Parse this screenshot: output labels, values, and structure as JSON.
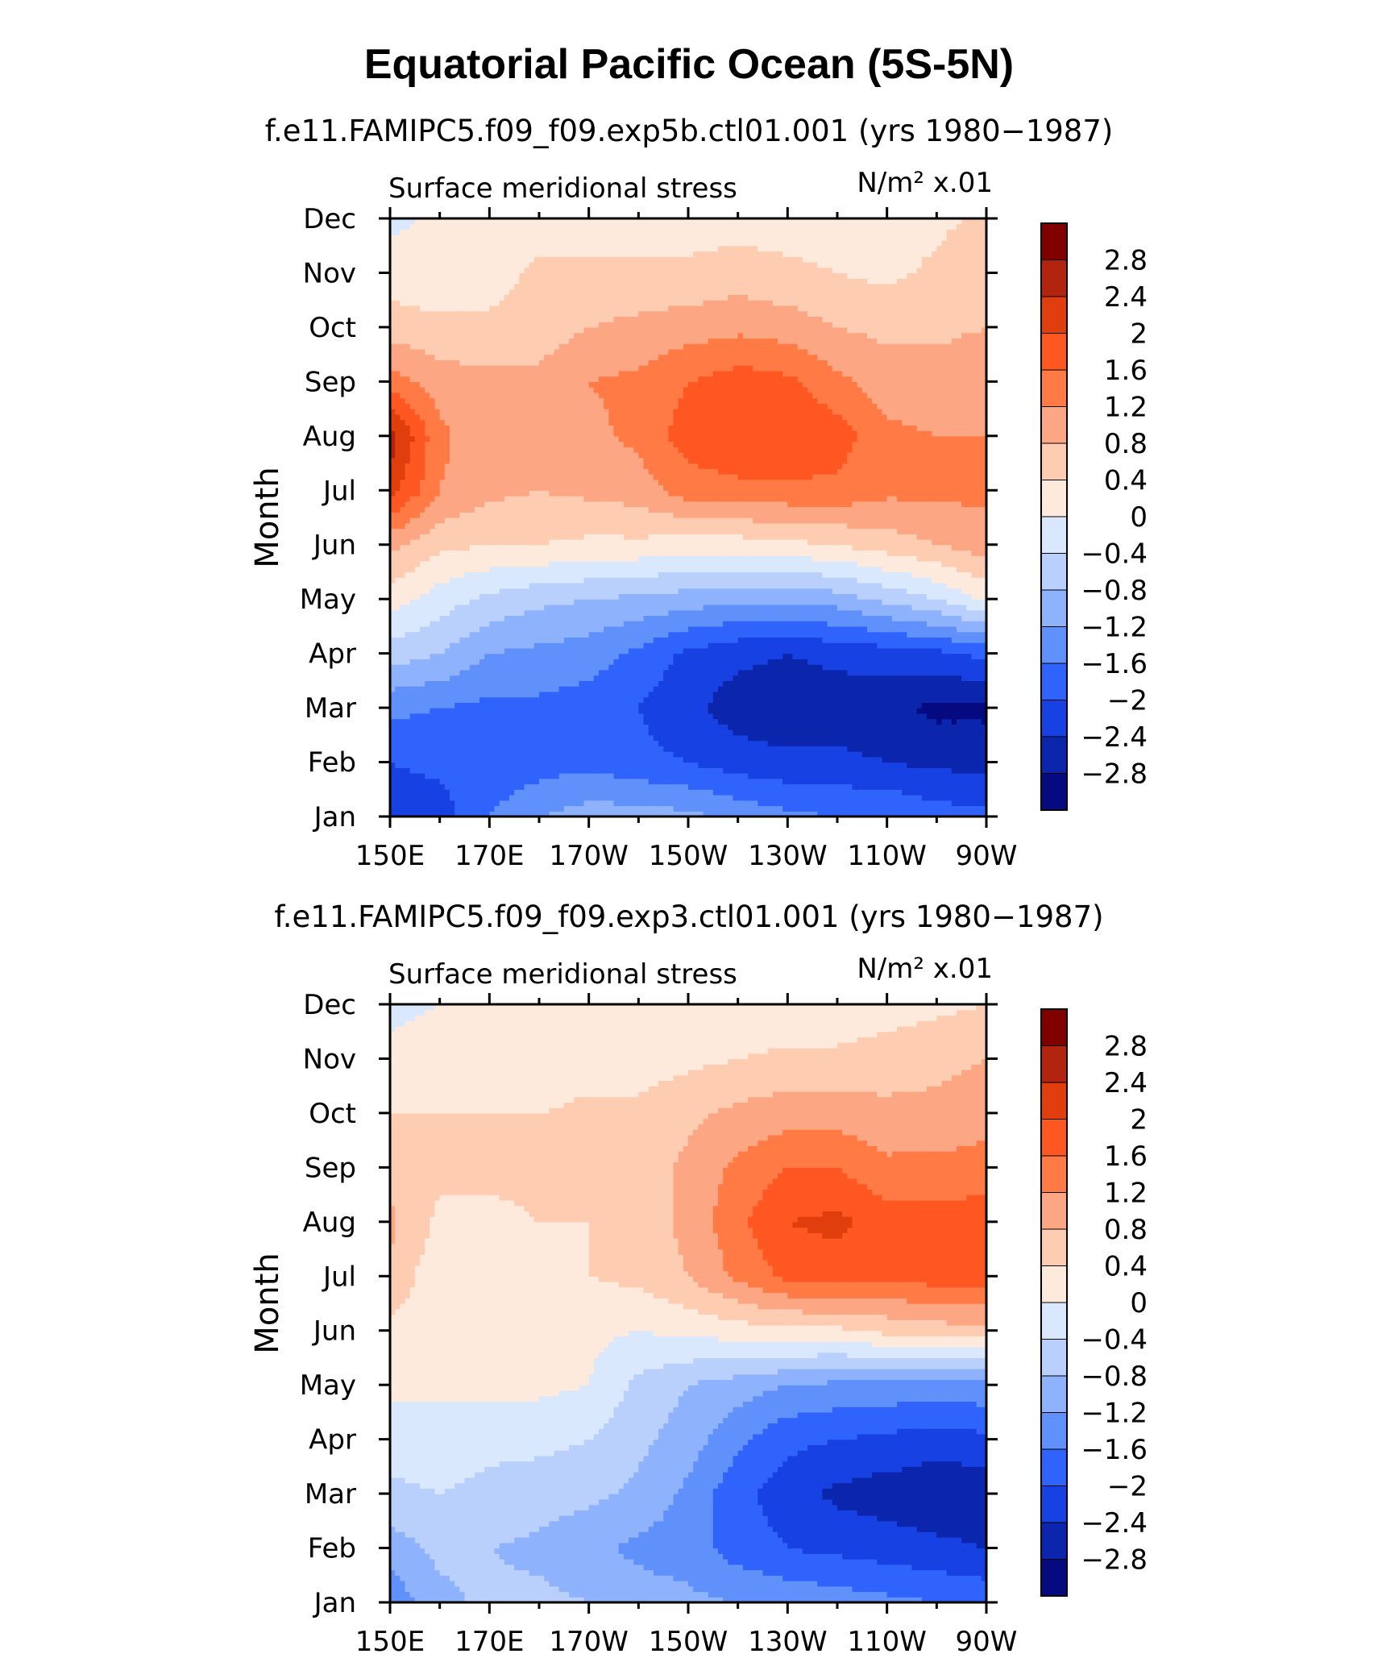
{
  "title": "Equatorial Pacific Ocean (5S-5N)",
  "colorbar": {
    "levels": [
      "2.8",
      "2.4",
      "2",
      "1.6",
      "1.2",
      "0.8",
      "0.4",
      "0",
      "−0.4",
      "−0.8",
      "−1.2",
      "−1.6",
      "−2",
      "−2.4",
      "−2.8"
    ],
    "colors": [
      "#800000",
      "#b3240f",
      "#e03e0c",
      "#ff5722",
      "#ff7a45",
      "#fca683",
      "#fdccb1",
      "#feeadc",
      "#d9e8fc",
      "#b9d0fc",
      "#8fb2fc",
      "#6091fb",
      "#2f63fb",
      "#1741e2",
      "#0b26ac",
      "#050a80"
    ]
  },
  "chart_data": [
    {
      "type": "heatmap",
      "subtitle": "f.e11.FAMIPC5.f09_f09.exp5b.ctl01.001 (yrs 1980−1987)",
      "variable_label": "Surface meridional stress",
      "units_label": "N/m² x.01",
      "ylabel": "Month",
      "x_ticks": [
        "150E",
        "170E",
        "170W",
        "150W",
        "130W",
        "110W",
        "90W"
      ],
      "x_tick_values": [
        150,
        170,
        190,
        210,
        230,
        250,
        270
      ],
      "y_ticks": [
        "Jan",
        "Feb",
        "Mar",
        "Apr",
        "May",
        "Jun",
        "Jul",
        "Aug",
        "Sep",
        "Oct",
        "Nov",
        "Dec"
      ],
      "xlim": [
        150,
        270
      ],
      "ylim": [
        1,
        12
      ],
      "x": [
        150,
        160,
        170,
        180,
        190,
        200,
        210,
        220,
        230,
        240,
        250,
        260,
        270
      ],
      "y": [
        1,
        2,
        3,
        4,
        5,
        6,
        7,
        8,
        9,
        10,
        11,
        12
      ],
      "z": [
        [
          -2.3,
          -2.2,
          -1.6,
          -1.2,
          -1.0,
          -1.0,
          -1.1,
          -1.3,
          -1.5,
          -1.6,
          -1.6,
          -1.8,
          -1.9
        ],
        [
          -2.0,
          -1.9,
          -1.9,
          -1.8,
          -1.7,
          -1.9,
          -2.0,
          -2.2,
          -2.3,
          -2.3,
          -2.4,
          -2.5,
          -2.5
        ],
        [
          -1.5,
          -1.6,
          -1.7,
          -1.7,
          -1.8,
          -2.0,
          -2.3,
          -2.6,
          -2.7,
          -2.6,
          -2.7,
          -2.9,
          -2.9
        ],
        [
          -0.6,
          -0.8,
          -1.2,
          -1.3,
          -1.4,
          -1.7,
          -2.1,
          -2.3,
          -2.4,
          -2.3,
          -2.2,
          -2.1,
          -1.9
        ],
        [
          0.2,
          -0.2,
          -0.5,
          -0.7,
          -0.8,
          -0.9,
          -1.0,
          -1.1,
          -1.1,
          -1.0,
          -0.7,
          -0.4,
          0.1
        ],
        [
          0.9,
          0.5,
          0.4,
          0.4,
          0.3,
          0.3,
          0.2,
          0.2,
          0.3,
          0.4,
          0.6,
          0.8,
          1.0
        ],
        [
          2.2,
          1.2,
          0.9,
          0.8,
          0.9,
          1.0,
          1.4,
          1.5,
          1.5,
          1.5,
          1.3,
          1.3,
          1.3
        ],
        [
          2.6,
          1.3,
          0.9,
          0.9,
          1.1,
          1.3,
          1.8,
          1.9,
          2.0,
          1.8,
          1.3,
          1.2,
          1.2
        ],
        [
          1.4,
          1.0,
          0.9,
          0.9,
          1.2,
          1.3,
          1.6,
          1.8,
          1.7,
          1.3,
          1.0,
          1.0,
          1.1
        ],
        [
          0.6,
          0.5,
          0.5,
          0.6,
          0.8,
          0.9,
          1.0,
          1.1,
          1.0,
          0.8,
          0.7,
          0.7,
          0.8
        ],
        [
          0.2,
          0.1,
          0.2,
          0.5,
          0.5,
          0.5,
          0.5,
          0.6,
          0.5,
          0.4,
          0.3,
          0.5,
          0.7
        ],
        [
          -0.1,
          0.1,
          0.1,
          0.2,
          0.1,
          0.2,
          0.2,
          0.2,
          0.2,
          0.2,
          0.1,
          0.3,
          0.5
        ]
      ]
    },
    {
      "type": "heatmap",
      "subtitle": "f.e11.FAMIPC5.f09_f09.exp3.ctl01.001 (yrs 1980−1987)",
      "variable_label": "Surface meridional stress",
      "units_label": "N/m² x.01",
      "ylabel": "Month",
      "x_ticks": [
        "150E",
        "170E",
        "170W",
        "150W",
        "130W",
        "110W",
        "90W"
      ],
      "x_tick_values": [
        150,
        170,
        190,
        210,
        230,
        250,
        270
      ],
      "y_ticks": [
        "Jan",
        "Feb",
        "Mar",
        "Apr",
        "May",
        "Jun",
        "Jul",
        "Aug",
        "Sep",
        "Oct",
        "Nov",
        "Dec"
      ],
      "xlim": [
        150,
        270
      ],
      "ylim": [
        1,
        12
      ],
      "x": [
        150,
        160,
        170,
        180,
        190,
        200,
        210,
        220,
        230,
        240,
        250,
        260,
        270
      ],
      "y": [
        1,
        2,
        3,
        4,
        5,
        6,
        7,
        8,
        9,
        10,
        11,
        12
      ],
      "z": [
        [
          -1.5,
          -0.9,
          -0.7,
          -0.7,
          -0.8,
          -1.0,
          -1.1,
          -1.2,
          -1.3,
          -1.4,
          -1.5,
          -1.6,
          -1.7
        ],
        [
          -1.0,
          -0.7,
          -0.8,
          -0.9,
          -1.1,
          -1.3,
          -1.4,
          -1.8,
          -2.0,
          -2.1,
          -2.2,
          -2.3,
          -2.4
        ],
        [
          -0.5,
          -0.4,
          -0.5,
          -0.6,
          -0.7,
          -0.9,
          -1.3,
          -1.9,
          -2.2,
          -2.5,
          -2.6,
          -2.7,
          -2.7
        ],
        [
          -0.2,
          -0.2,
          -0.3,
          -0.3,
          -0.4,
          -0.7,
          -1.0,
          -1.5,
          -1.9,
          -2.0,
          -2.1,
          -2.2,
          -2.1
        ],
        [
          0.1,
          0.1,
          0.1,
          0.1,
          0.0,
          -0.5,
          -0.8,
          -1.0,
          -1.2,
          -1.3,
          -1.3,
          -1.4,
          -1.3
        ],
        [
          0.3,
          0.2,
          0.2,
          0.1,
          0.1,
          0.0,
          0.1,
          0.2,
          0.3,
          0.3,
          0.5,
          0.6,
          0.7
        ],
        [
          0.7,
          0.1,
          0.2,
          0.3,
          0.4,
          0.5,
          0.8,
          1.3,
          1.7,
          1.8,
          1.7,
          1.8,
          1.8
        ],
        [
          0.9,
          0.3,
          0.3,
          0.4,
          0.4,
          0.6,
          0.9,
          1.5,
          2.0,
          2.1,
          1.8,
          1.8,
          1.8
        ],
        [
          0.6,
          0.5,
          0.5,
          0.5,
          0.5,
          0.6,
          0.9,
          1.3,
          1.6,
          1.6,
          1.3,
          1.3,
          1.4
        ],
        [
          0.4,
          0.4,
          0.4,
          0.4,
          0.5,
          0.5,
          0.7,
          0.9,
          1.0,
          1.0,
          0.9,
          0.9,
          1.0
        ],
        [
          0.1,
          0.2,
          0.2,
          0.1,
          0.2,
          0.2,
          0.3,
          0.4,
          0.5,
          0.5,
          0.6,
          0.7,
          0.8
        ],
        [
          -0.1,
          0.0,
          0.0,
          0.1,
          0.0,
          0.1,
          0.1,
          0.0,
          0.1,
          0.1,
          0.2,
          0.3,
          0.4
        ]
      ]
    }
  ]
}
